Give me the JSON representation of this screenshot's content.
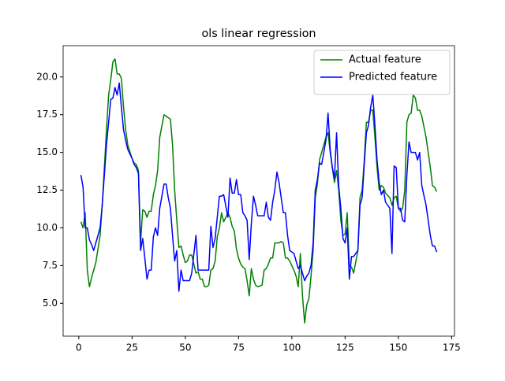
{
  "chart_data": {
    "type": "line",
    "title": "ols linear regression",
    "x": [
      1,
      2,
      3,
      4,
      5,
      6,
      7,
      8,
      10,
      11,
      12,
      13,
      14,
      15,
      16,
      17,
      18,
      19,
      20,
      21,
      22,
      23,
      25,
      26,
      27,
      28,
      29,
      30,
      31,
      32,
      33,
      34,
      35,
      36,
      37,
      38,
      40,
      41,
      42,
      43,
      44,
      45,
      46,
      47,
      48,
      49,
      50,
      51,
      52,
      53,
      55,
      56,
      57,
      58,
      59,
      60,
      61,
      62,
      63,
      64,
      65,
      66,
      67,
      68,
      70,
      71,
      72,
      73,
      74,
      75,
      76,
      77,
      78,
      79,
      80,
      81,
      82,
      83,
      84,
      86,
      87,
      88,
      89,
      90,
      91,
      92,
      93,
      94,
      95,
      96,
      97,
      98,
      99,
      101,
      102,
      103,
      104,
      105,
      106,
      107,
      108,
      109,
      110,
      111,
      112,
      113,
      114,
      116,
      117,
      118,
      119,
      120,
      121,
      122,
      123,
      124,
      125,
      126,
      127,
      128,
      129,
      131,
      132,
      133,
      134,
      135,
      136,
      137,
      138,
      139,
      140,
      141,
      142,
      143,
      144,
      146,
      147,
      148,
      149,
      150,
      151,
      152,
      153,
      154,
      155,
      156,
      157,
      158,
      159,
      160,
      161,
      163,
      164,
      165,
      166,
      167,
      168
    ],
    "series": [
      {
        "name": "Actual feature",
        "color": "#008000",
        "values": [
          10.4,
          10.0,
          11.0,
          7.2,
          6.1,
          6.7,
          7.2,
          7.7,
          9.5,
          11.5,
          14.0,
          16.5,
          18.8,
          19.8,
          21.0,
          21.2,
          20.2,
          20.2,
          19.9,
          18.0,
          16.5,
          15.5,
          14.6,
          14.3,
          14.2,
          13.8,
          9.0,
          11.2,
          11.1,
          10.7,
          11.1,
          11.1,
          12.2,
          12.8,
          13.8,
          16.0,
          17.5,
          17.4,
          17.3,
          17.2,
          15.5,
          12.5,
          10.5,
          8.7,
          8.8,
          8.2,
          7.7,
          7.8,
          8.2,
          8.2,
          7.0,
          7.1,
          6.6,
          6.6,
          6.1,
          6.1,
          6.2,
          7.2,
          7.3,
          7.8,
          9.4,
          10.0,
          11.0,
          10.4,
          11.0,
          10.7,
          10.1,
          9.8,
          8.6,
          8.0,
          7.6,
          7.4,
          7.3,
          6.5,
          5.5,
          7.3,
          6.6,
          6.2,
          6.1,
          6.2,
          7.2,
          7.3,
          7.6,
          8.0,
          8.0,
          9.0,
          9.0,
          9.0,
          9.1,
          9.0,
          8.0,
          8.0,
          7.8,
          7.2,
          6.8,
          6.1,
          8.3,
          5.5,
          3.7,
          4.9,
          5.3,
          6.8,
          8.5,
          12.0,
          12.9,
          14.5,
          15.0,
          16.0,
          16.3,
          15.0,
          14.0,
          13.0,
          13.8,
          12.5,
          10.5,
          9.5,
          9.6,
          11.0,
          7.5,
          7.4,
          7.0,
          8.5,
          12.0,
          12.5,
          14.5,
          17.0,
          17.0,
          17.8,
          17.8,
          16.0,
          14.0,
          12.5,
          12.8,
          12.7,
          12.3,
          12.0,
          11.5,
          12.0,
          12.1,
          11.3,
          11.1,
          11.3,
          12.5,
          17.0,
          17.5,
          17.6,
          18.8,
          18.6,
          17.8,
          17.8,
          17.4,
          16.0,
          15.0,
          14.0,
          12.8,
          12.7,
          12.4
        ]
      },
      {
        "name": "Predicted feature",
        "color": "#0000ff",
        "values": [
          13.5,
          12.7,
          10.0,
          10.0,
          9.2,
          8.9,
          8.5,
          9.0,
          10.0,
          11.5,
          13.5,
          15.5,
          17.0,
          18.5,
          18.6,
          19.3,
          18.8,
          19.6,
          18.0,
          16.5,
          15.8,
          15.2,
          14.6,
          14.2,
          14.0,
          13.6,
          8.5,
          9.3,
          8.0,
          6.6,
          7.2,
          7.2,
          9.4,
          10.0,
          9.5,
          11.3,
          12.9,
          12.9,
          12.0,
          11.3,
          9.5,
          7.8,
          8.5,
          5.8,
          7.2,
          6.5,
          6.5,
          6.5,
          6.5,
          7.0,
          9.5,
          7.2,
          7.2,
          7.2,
          7.2,
          7.2,
          7.2,
          10.1,
          8.7,
          9.3,
          10.7,
          12.1,
          12.1,
          12.2,
          10.7,
          13.3,
          12.3,
          12.3,
          13.2,
          12.2,
          12.2,
          11.0,
          10.8,
          10.5,
          7.9,
          10.3,
          12.1,
          11.5,
          10.8,
          10.8,
          10.8,
          11.7,
          10.7,
          10.5,
          11.7,
          12.5,
          13.7,
          13.0,
          12.0,
          11.0,
          11.0,
          9.5,
          8.5,
          8.3,
          7.8,
          7.3,
          7.5,
          7.0,
          6.5,
          6.8,
          7.0,
          7.5,
          9.0,
          12.5,
          13.2,
          14.3,
          14.2,
          15.8,
          17.6,
          15.2,
          14.0,
          13.3,
          16.3,
          12.8,
          11.3,
          9.3,
          9.0,
          10.0,
          6.6,
          8.1,
          8.1,
          8.5,
          11.5,
          12.0,
          14.2,
          16.3,
          16.8,
          18.0,
          18.8,
          16.8,
          14.5,
          13.0,
          12.2,
          12.5,
          11.7,
          11.3,
          8.3,
          14.1,
          14.0,
          11.3,
          11.3,
          10.5,
          10.4,
          13.5,
          15.7,
          15.0,
          15.0,
          15.0,
          14.5,
          15.0,
          12.8,
          11.5,
          10.5,
          9.5,
          8.8,
          8.8,
          8.4
        ]
      }
    ],
    "xlim": [
      -7.35,
      176.35
    ],
    "xticks": [
      0,
      25,
      50,
      75,
      100,
      125,
      150,
      175
    ],
    "ylim": [
      2.825,
      22.075
    ],
    "yticks": [
      {
        "value": 5,
        "label": "5.0"
      },
      {
        "value": 7.5,
        "label": "7.5"
      },
      {
        "value": 10,
        "label": "10.0"
      },
      {
        "value": 12.5,
        "label": "12.5"
      },
      {
        "value": 15,
        "label": "15.0"
      },
      {
        "value": 17.5,
        "label": "17.5"
      },
      {
        "value": 20,
        "label": "20.0"
      }
    ],
    "grid": false,
    "legend": "upper right"
  }
}
